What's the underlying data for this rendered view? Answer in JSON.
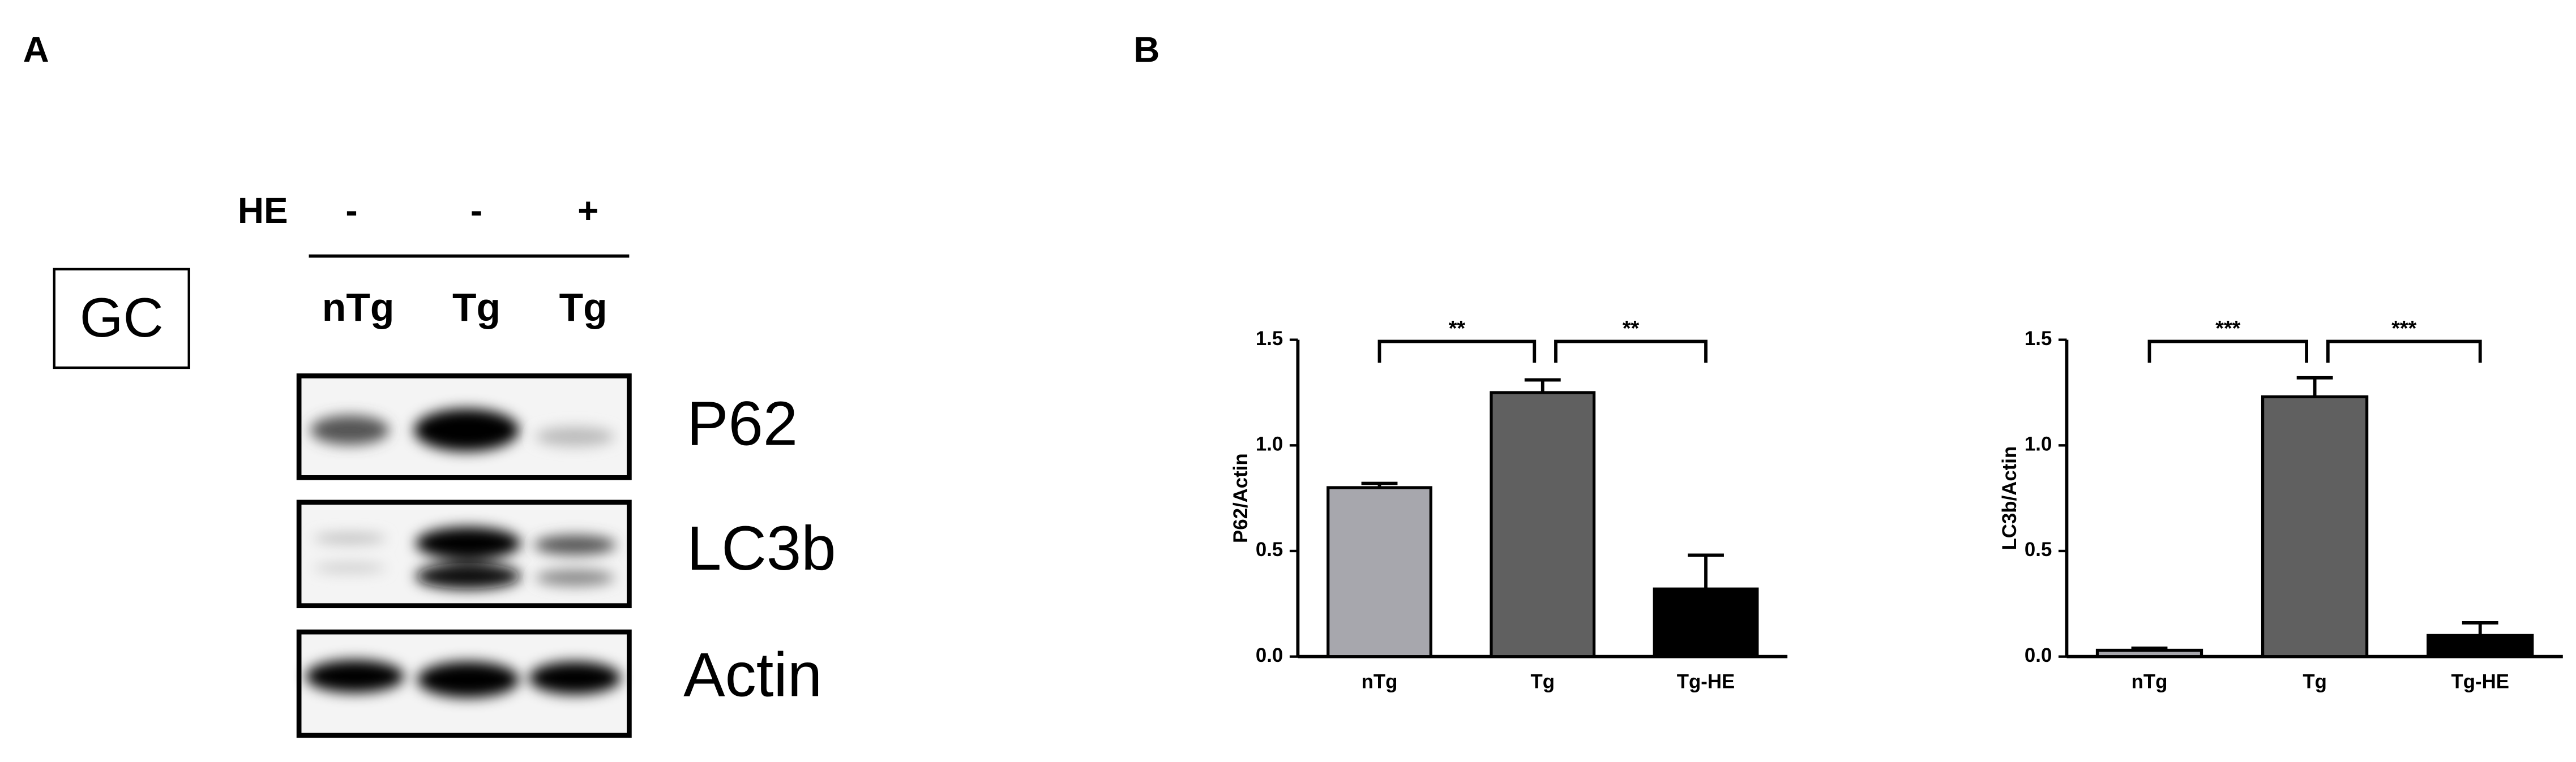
{
  "panel_labels": [
    "A",
    "B"
  ],
  "blot": {
    "treatment_label": "HE",
    "treatments": [
      "-",
      "-",
      "+"
    ],
    "lanes": [
      "nTg",
      "Tg",
      "Tg"
    ],
    "tissue": "GC",
    "bands": [
      "P62",
      "LC3b",
      "Actin"
    ]
  },
  "chart_data": [
    {
      "type": "bar",
      "y_label": "P62/Actin",
      "categories": [
        "nTg",
        "Tg",
        "Tg-HE"
      ],
      "values": [
        0.8,
        1.25,
        0.32
      ],
      "errors": [
        0.02,
        0.06,
        0.16
      ],
      "colors": [
        "#a7a7ad",
        "#606060",
        "#000000"
      ],
      "ylim": [
        0,
        1.5
      ],
      "yticks": [
        {
          "value": 0,
          "label": "0.0"
        },
        {
          "value": 0.5,
          "label": "0.5"
        },
        {
          "value": 1,
          "label": "1.0"
        },
        {
          "value": 1.5,
          "label": "1.5"
        }
      ],
      "annotations": [
        "**",
        "**"
      ]
    },
    {
      "type": "bar",
      "y_label": "LC3b/Actin",
      "categories": [
        "nTg",
        "Tg",
        "Tg-HE"
      ],
      "values": [
        0.03,
        1.23,
        0.1
      ],
      "errors": [
        0.01,
        0.09,
        0.06
      ],
      "colors": [
        "#a7a7ad",
        "#606060",
        "#000000"
      ],
      "ylim": [
        0,
        1.5
      ],
      "yticks": [
        {
          "value": 0,
          "label": "0.0"
        },
        {
          "value": 0.5,
          "label": "0.5"
        },
        {
          "value": 1,
          "label": "1.0"
        },
        {
          "value": 1.5,
          "label": "1.5"
        }
      ],
      "annotations": [
        "***",
        "***"
      ]
    }
  ]
}
